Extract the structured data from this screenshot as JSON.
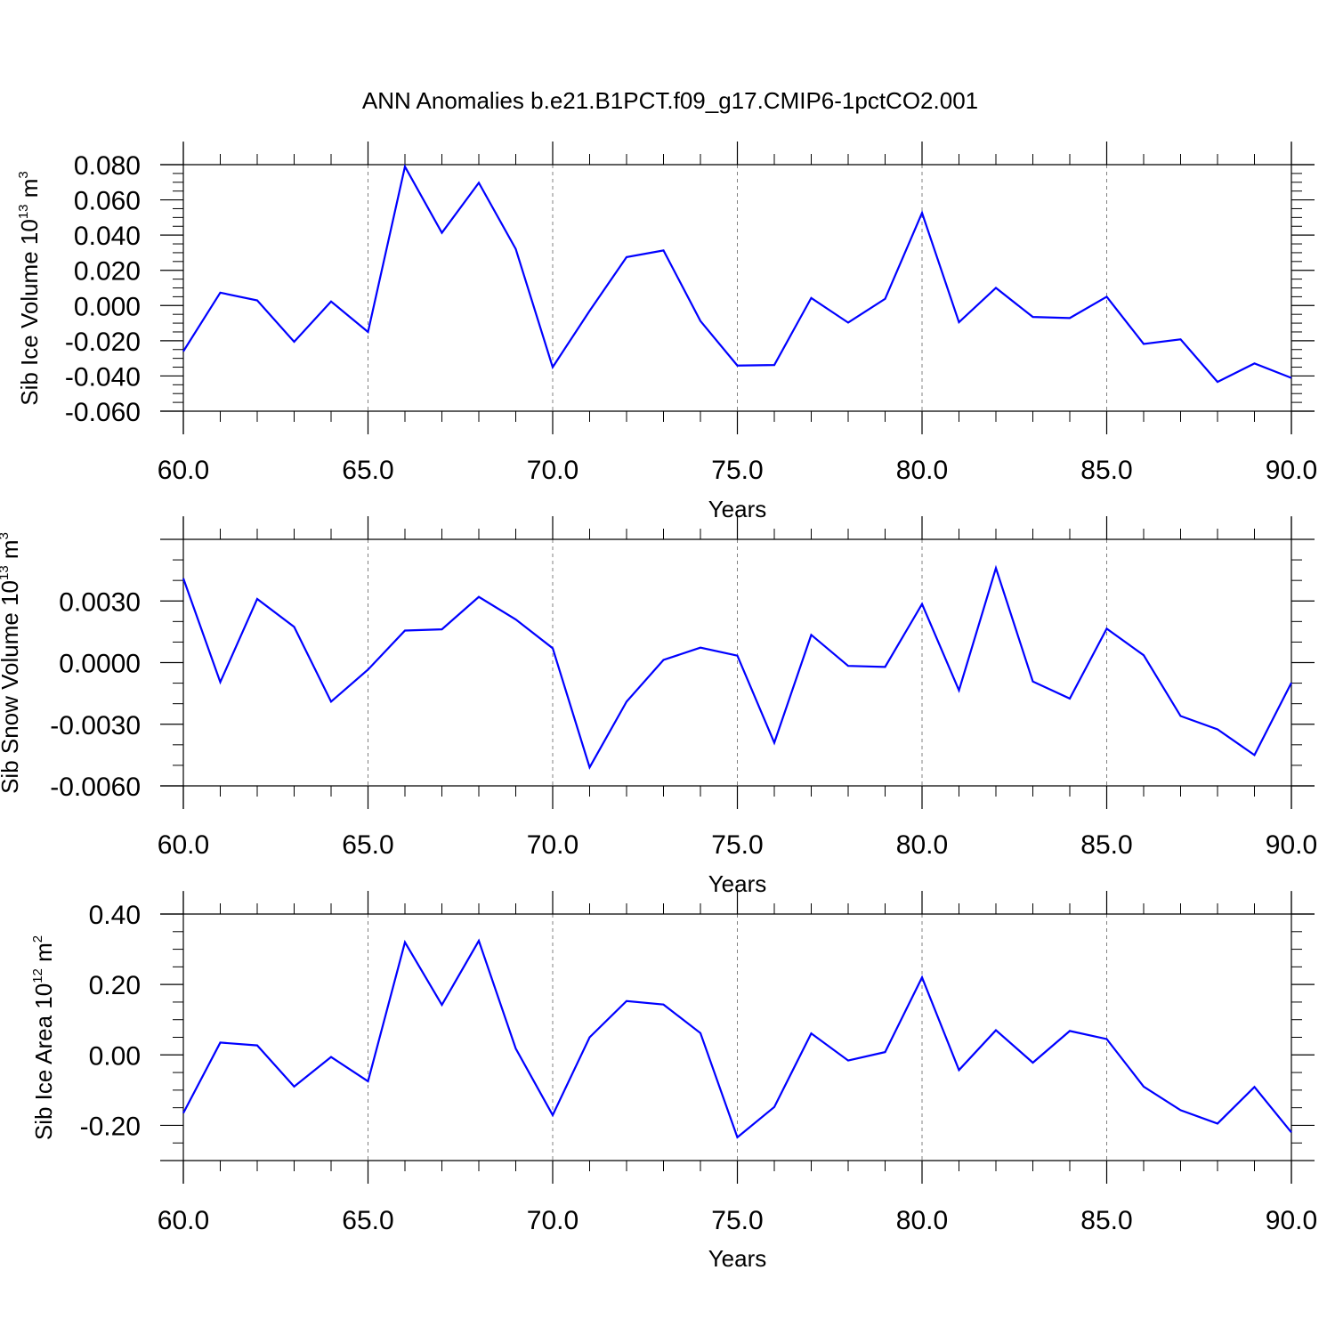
{
  "title": "ANN Anomalies b.e21.B1PCT.f09_g17.CMIP6-1pctCO2.001",
  "colors": {
    "line": "#0000ff",
    "axis": "#000000",
    "grid": "#808080",
    "background": "#ffffff"
  },
  "chart_data": [
    {
      "type": "line",
      "xlabel": "Years",
      "ylabel": {
        "main": "Sib Ice Volume 10",
        "exp": "13",
        "unit": "m",
        "unit_exp": "3"
      },
      "xlim": [
        60,
        90
      ],
      "ylim": [
        -0.06,
        0.08
      ],
      "xticks": [
        60,
        65,
        70,
        75,
        80,
        85,
        90
      ],
      "xtick_labels": [
        "60.0",
        "65.0",
        "70.0",
        "75.0",
        "80.0",
        "85.0",
        "90.0"
      ],
      "yticks": [
        -0.06,
        -0.04,
        -0.02,
        0.0,
        0.02,
        0.04,
        0.06,
        0.08
      ],
      "ytick_labels": [
        "-0.060",
        "-0.040",
        "-0.020",
        "0.000",
        "0.020",
        "0.040",
        "0.060",
        "0.080"
      ],
      "grid": "vertical dashed at major x ticks",
      "x": [
        60,
        61,
        62,
        63,
        64,
        65,
        66,
        67,
        68,
        69,
        70,
        71,
        72,
        73,
        74,
        75,
        76,
        77,
        78,
        79,
        80,
        81,
        82,
        83,
        84,
        85,
        86,
        87,
        88,
        89,
        90
      ],
      "series": [
        {
          "values": [
            -0.026,
            0.0073,
            0.0029,
            -0.0206,
            0.0023,
            -0.015,
            0.0789,
            0.0413,
            0.0697,
            0.0321,
            -0.035,
            -0.003,
            0.0275,
            0.0313,
            -0.0088,
            -0.0341,
            -0.0338,
            0.0043,
            -0.0097,
            0.0038,
            0.0526,
            -0.0095,
            0.01,
            -0.0065,
            -0.0071,
            0.005,
            -0.0218,
            -0.0192,
            -0.0434,
            -0.0329,
            -0.0411
          ]
        }
      ]
    },
    {
      "type": "line",
      "xlabel": "Years",
      "ylabel": {
        "main": "Sib Snow Volume 10",
        "exp": "13",
        "unit": "m",
        "unit_exp": "3"
      },
      "xlim": [
        60,
        90
      ],
      "ylim": [
        -0.006,
        0.006
      ],
      "xticks": [
        60,
        65,
        70,
        75,
        80,
        85,
        90
      ],
      "xtick_labels": [
        "60.0",
        "65.0",
        "70.0",
        "75.0",
        "80.0",
        "85.0",
        "90.0"
      ],
      "yticks": [
        -0.006,
        -0.003,
        0.0,
        0.003
      ],
      "ytick_labels": [
        "-0.0060",
        "-0.0030",
        "0.0000",
        "0.0030"
      ],
      "grid": "vertical dashed at major x ticks",
      "x": [
        60,
        61,
        62,
        63,
        64,
        65,
        66,
        67,
        68,
        69,
        70,
        71,
        72,
        73,
        74,
        75,
        76,
        77,
        78,
        79,
        80,
        81,
        82,
        83,
        84,
        85,
        86,
        87,
        88,
        89,
        90
      ],
      "series": [
        {
          "values": [
            0.0041,
            -0.00095,
            0.0031,
            0.00174,
            -0.0019,
            -0.00034,
            0.00156,
            0.00162,
            0.0032,
            0.0021,
            0.0007,
            -0.0051,
            -0.0019,
            0.00013,
            0.00073,
            0.00034,
            -0.0039,
            0.00135,
            -0.00016,
            -0.00021,
            0.00285,
            -0.00135,
            0.0046,
            -0.00092,
            -0.00175,
            0.00165,
            0.00036,
            -0.0026,
            -0.00325,
            -0.0045,
            -0.00098
          ]
        }
      ]
    },
    {
      "type": "line",
      "xlabel": "Years",
      "ylabel": {
        "main": "Sib Ice Area 10",
        "exp": "12",
        "unit": "m",
        "unit_exp": "2"
      },
      "xlim": [
        60,
        90
      ],
      "ylim": [
        -0.3,
        0.4
      ],
      "xticks": [
        60,
        65,
        70,
        75,
        80,
        85,
        90
      ],
      "xtick_labels": [
        "60.0",
        "65.0",
        "70.0",
        "75.0",
        "80.0",
        "85.0",
        "90.0"
      ],
      "yticks": [
        -0.2,
        0.0,
        0.2,
        0.4
      ],
      "ytick_labels": [
        "-0.20",
        "0.00",
        "0.20",
        "0.40"
      ],
      "grid": "vertical dashed at major x ticks",
      "x": [
        60,
        61,
        62,
        63,
        64,
        65,
        66,
        67,
        68,
        69,
        70,
        71,
        72,
        73,
        74,
        75,
        76,
        77,
        78,
        79,
        80,
        81,
        82,
        83,
        84,
        85,
        86,
        87,
        88,
        89,
        90
      ],
      "series": [
        {
          "values": [
            -0.165,
            0.035,
            0.027,
            -0.09,
            -0.006,
            -0.075,
            0.32,
            0.142,
            0.324,
            0.018,
            -0.171,
            0.05,
            0.153,
            0.143,
            0.062,
            -0.234,
            -0.148,
            0.061,
            -0.016,
            0.008,
            0.22,
            -0.043,
            0.07,
            -0.022,
            0.068,
            0.045,
            -0.09,
            -0.157,
            -0.195,
            -0.091,
            -0.22
          ]
        }
      ]
    }
  ]
}
